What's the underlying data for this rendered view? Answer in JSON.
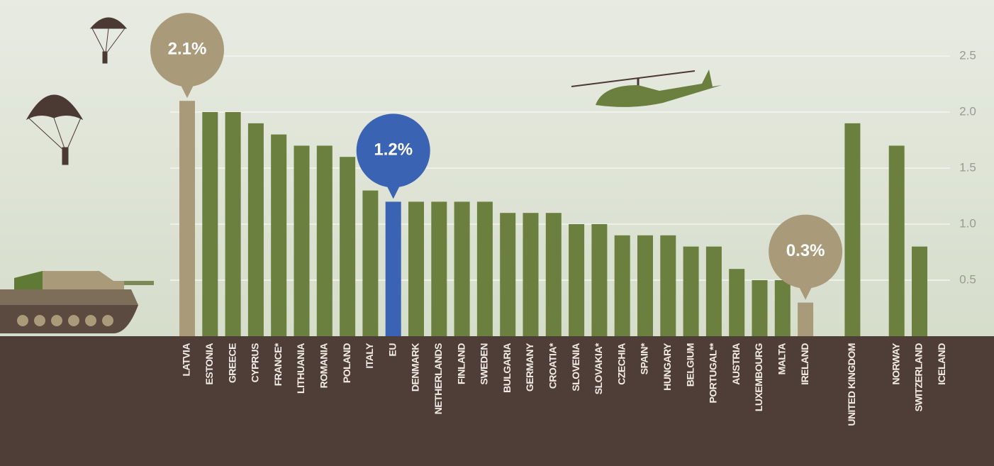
{
  "chart_data": {
    "type": "bar",
    "categories": [
      "LATVIA",
      "ESTONIA",
      "GREECE",
      "CYPRUS",
      "FRANCE*",
      "LITHUANIA",
      "ROMANIA",
      "POLAND",
      "ITALY",
      "EU",
      "DENMARK",
      "NETHERLANDS",
      "FINLAND",
      "SWEDEN",
      "BULGARIA",
      "GERMANY",
      "CROATIA*",
      "SLOVENIA",
      "SLOVAKIA*",
      "CZECHIA",
      "SPAIN*",
      "HUNGARY",
      "BELGIUM",
      "PORTUGAL**",
      "AUSTRIA",
      "LUXEMBOURG",
      "MALTA",
      "IRELAND",
      "UNITED KINGDOM",
      "NORWAY",
      "SWITZERLAND",
      "ICELAND"
    ],
    "values": [
      2.1,
      2.0,
      2.0,
      1.9,
      1.8,
      1.7,
      1.7,
      1.6,
      1.3,
      1.2,
      1.2,
      1.2,
      1.2,
      1.2,
      1.1,
      1.1,
      1.1,
      1.0,
      1.0,
      0.9,
      0.9,
      0.9,
      0.8,
      0.8,
      0.6,
      0.5,
      0.5,
      0.3,
      1.9,
      1.7,
      0.8,
      0
    ],
    "value_labels": [
      "2.1%",
      null,
      null,
      null,
      null,
      null,
      null,
      null,
      null,
      "1.2%",
      null,
      null,
      null,
      null,
      null,
      null,
      null,
      null,
      null,
      null,
      null,
      null,
      null,
      null,
      null,
      null,
      null,
      "0.3%",
      null,
      null,
      null,
      null
    ],
    "colors": [
      "#a99b7a",
      "#6b7f3f",
      "#6b7f3f",
      "#6b7f3f",
      "#6b7f3f",
      "#6b7f3f",
      "#6b7f3f",
      "#6b7f3f",
      "#6b7f3f",
      "#3b63b4",
      "#6b7f3f",
      "#6b7f3f",
      "#6b7f3f",
      "#6b7f3f",
      "#6b7f3f",
      "#6b7f3f",
      "#6b7f3f",
      "#6b7f3f",
      "#6b7f3f",
      "#6b7f3f",
      "#6b7f3f",
      "#6b7f3f",
      "#6b7f3f",
      "#6b7f3f",
      "#6b7f3f",
      "#6b7f3f",
      "#6b7f3f",
      "#a99b7a",
      "#6b7f3f",
      "#6b7f3f",
      "#6b7f3f",
      "#6b7f3f"
    ],
    "ylim": [
      0,
      3.0
    ],
    "yticks": [
      0.5,
      {
        "value": 1.0,
        "label": "1.0"
      },
      1.5,
      {
        "value": 2.0,
        "label": "2.0"
      },
      2.5
    ],
    "grid": true
  }
}
